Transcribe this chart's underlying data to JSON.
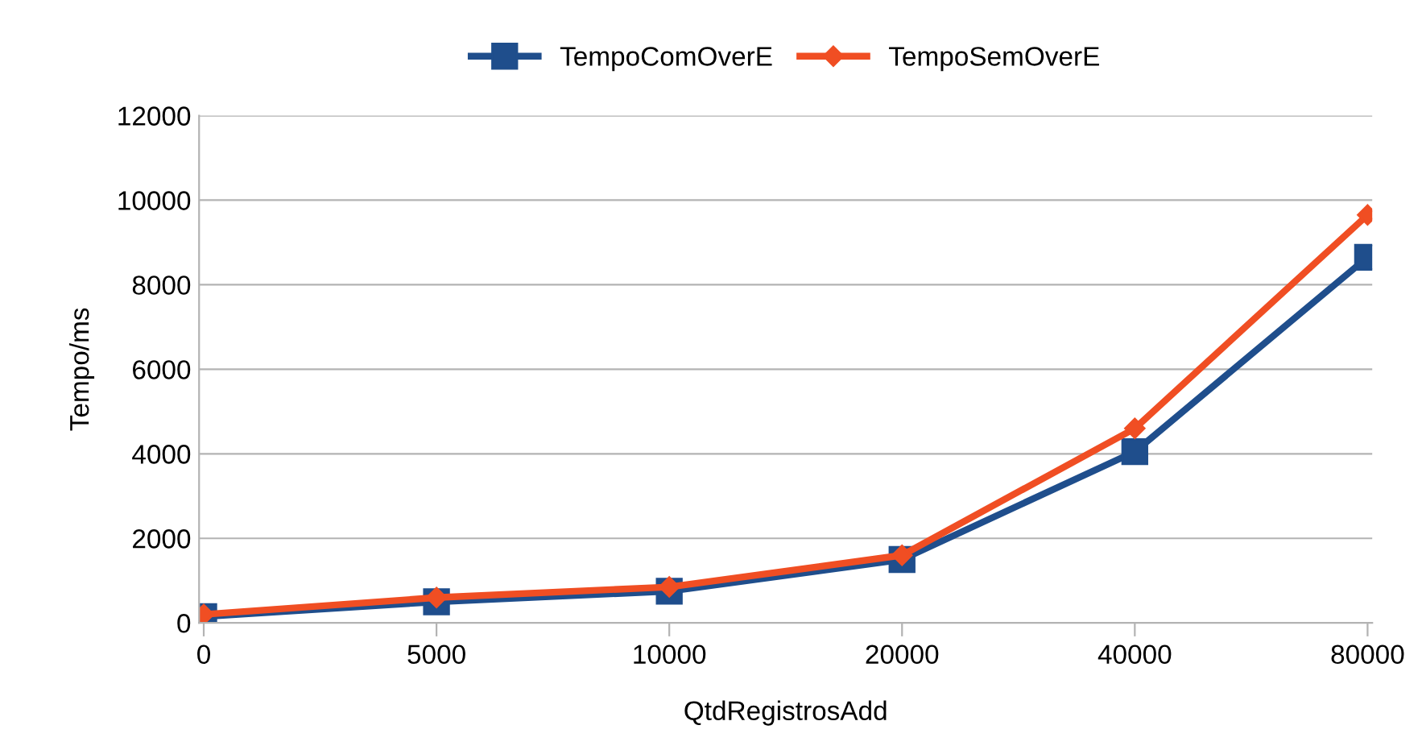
{
  "chart_data": {
    "type": "line",
    "xlabel": "QtdRegistrosAdd",
    "ylabel": "Tempo/ms",
    "categories": [
      "0",
      "5000",
      "10000",
      "20000",
      "40000",
      "80000"
    ],
    "series": [
      {
        "name": "TempoComOverE",
        "color": "#1f4e8c",
        "marker": "square",
        "values": [
          150,
          500,
          750,
          1500,
          4050,
          8650
        ]
      },
      {
        "name": "TempoSemOverE",
        "color": "#f04e23",
        "marker": "diamond",
        "values": [
          200,
          600,
          850,
          1600,
          4600,
          9650
        ]
      }
    ],
    "ylim": [
      0,
      12000
    ],
    "yticks": [
      0,
      2000,
      4000,
      6000,
      8000,
      10000,
      12000
    ],
    "grid": "y",
    "legend": "top",
    "line_style": "solid"
  }
}
